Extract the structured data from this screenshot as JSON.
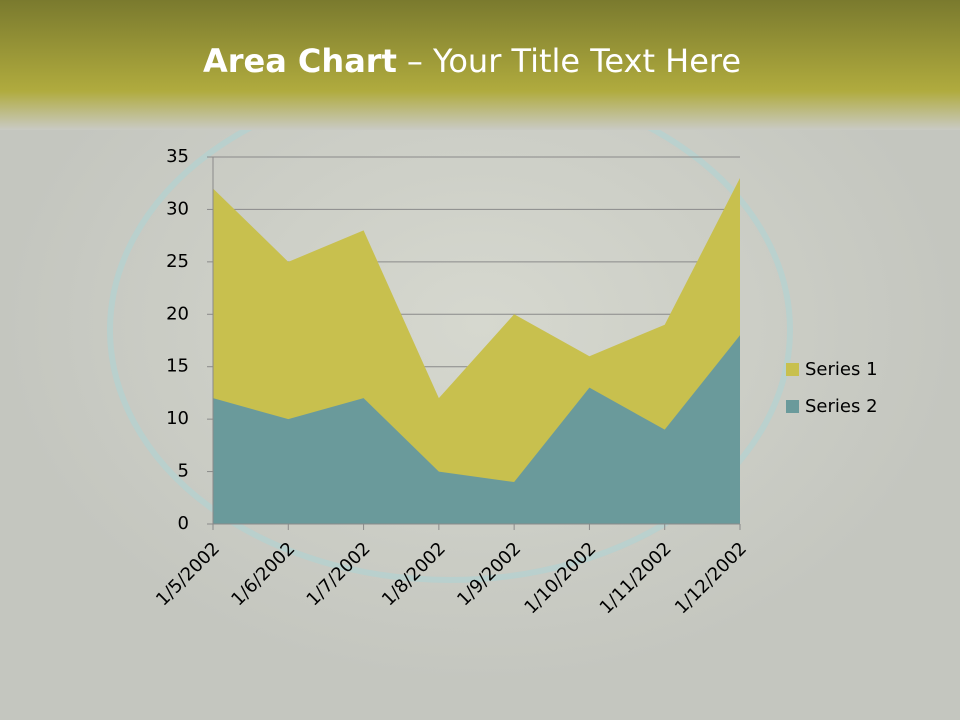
{
  "chart_data": {
    "type": "area",
    "title_parts": [
      "Area Chart",
      "– Your Title Text Here"
    ],
    "categories": [
      "1/5/2002",
      "1/6/2002",
      "1/7/2002",
      "1/8/2002",
      "1/9/2002",
      "1/10/2002",
      "1/11/2002",
      "1/12/2002"
    ],
    "series": [
      {
        "name": "Series 1",
        "color": "#c8c04e",
        "values": [
          32,
          25,
          28,
          12,
          20,
          16,
          19,
          33
        ]
      },
      {
        "name": "Series 2",
        "color": "#6a9a9b",
        "values": [
          12,
          10,
          12,
          5,
          4,
          13,
          9,
          18
        ]
      }
    ],
    "ylim": [
      0,
      35
    ],
    "yticks": [
      0,
      5,
      10,
      15,
      20,
      25,
      30,
      35
    ],
    "grid": true,
    "legend": "right"
  }
}
